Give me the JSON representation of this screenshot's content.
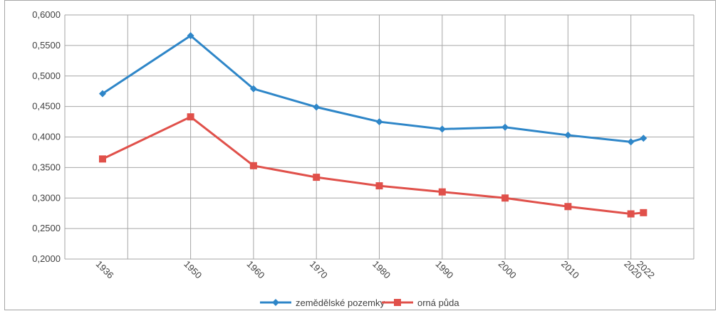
{
  "chart_data": {
    "type": "line",
    "title": "",
    "xlabel": "",
    "ylabel": "",
    "x": [
      1936,
      1950,
      1960,
      1970,
      1980,
      1990,
      2000,
      2010,
      2020,
      2022
    ],
    "y_tick_labels": [
      "0,2000",
      "0,2500",
      "0,3000",
      "0,3500",
      "0,4000",
      "0,4500",
      "0,5000",
      "0,5500",
      "0,6000"
    ],
    "x_tick_labels": [
      "1936",
      "1950",
      "1960",
      "1970",
      "1980",
      "1990",
      "2000",
      "2010",
      "2020",
      "2022"
    ],
    "ylim": [
      0.2,
      0.6
    ],
    "grid": true,
    "legend_position": "bottom",
    "series": [
      {
        "name": "zemědělské pozemky",
        "color": "#2e86c8",
        "marker": "diamond",
        "values": [
          0.471,
          0.566,
          0.479,
          0.449,
          0.425,
          0.413,
          0.416,
          0.403,
          0.392,
          0.398
        ]
      },
      {
        "name": "orná půda",
        "color": "#e0504a",
        "marker": "square",
        "values": [
          0.364,
          0.433,
          0.353,
          0.334,
          0.32,
          0.31,
          0.3,
          0.286,
          0.274,
          0.276
        ]
      }
    ]
  }
}
